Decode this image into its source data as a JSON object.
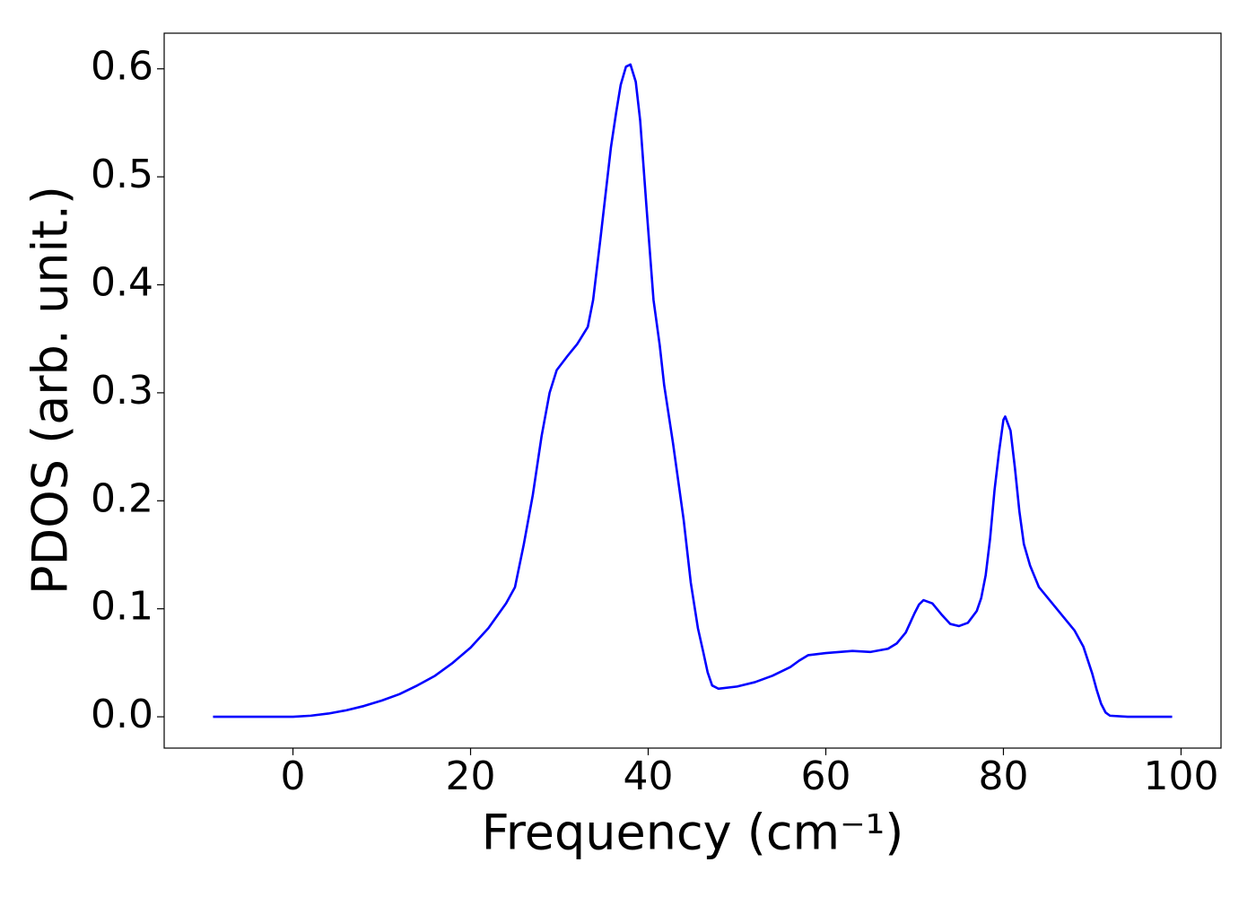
{
  "chart_data": {
    "type": "line",
    "xlabel": "Frequency (cm⁻¹)",
    "ylabel": "PDOS (arb. unit.)",
    "x": [
      -9,
      -7,
      -5,
      -3,
      -1,
      0,
      2,
      4,
      6,
      8,
      10,
      12,
      14,
      16,
      18,
      20,
      22,
      24,
      25,
      26,
      27,
      28,
      28.9,
      29.7,
      31,
      32,
      33.2,
      33.8,
      34.6,
      35.8,
      36.4,
      36.9,
      37.5,
      38,
      38.6,
      39.1,
      39.8,
      40.6,
      41.3,
      41.8,
      42.8,
      44,
      44.8,
      45.6,
      46.2,
      46.7,
      47.2,
      47.9,
      50,
      52,
      54,
      56,
      57,
      58,
      60,
      63,
      65,
      67,
      68,
      69,
      70,
      70.5,
      71,
      72,
      73,
      74,
      75,
      76,
      77,
      77.5,
      78,
      78.5,
      79,
      79.5,
      80,
      80.2,
      80.8,
      81.3,
      81.8,
      82.3,
      83,
      84,
      86,
      88,
      89,
      90,
      90.5,
      91,
      91.5,
      92,
      94,
      96,
      99
    ],
    "series": [
      {
        "color": "#0000ff",
        "values": [
          0,
          0,
          0,
          0,
          0,
          0,
          0.001,
          0.003,
          0.006,
          0.01,
          0.015,
          0.021,
          0.029,
          0.038,
          0.05,
          0.064,
          0.082,
          0.105,
          0.12,
          0.16,
          0.205,
          0.26,
          0.3,
          0.321,
          0.335,
          0.345,
          0.361,
          0.386,
          0.441,
          0.527,
          0.56,
          0.585,
          0.602,
          0.604,
          0.588,
          0.552,
          0.473,
          0.386,
          0.344,
          0.307,
          0.253,
          0.182,
          0.124,
          0.082,
          0.06,
          0.041,
          0.029,
          0.026,
          0.028,
          0.032,
          0.038,
          0.046,
          0.052,
          0.057,
          0.059,
          0.061,
          0.06,
          0.063,
          0.068,
          0.078,
          0.096,
          0.104,
          0.108,
          0.105,
          0.095,
          0.086,
          0.084,
          0.087,
          0.098,
          0.11,
          0.131,
          0.165,
          0.21,
          0.245,
          0.275,
          0.278,
          0.265,
          0.23,
          0.19,
          0.16,
          0.14,
          0.12,
          0.1,
          0.08,
          0.065,
          0.04,
          0.025,
          0.012,
          0.004,
          0.001,
          0,
          0,
          0
        ]
      }
    ],
    "xlim": [
      -14.5,
      104.5
    ],
    "ylim": [
      -0.029,
      0.633
    ],
    "xticks": [
      0,
      20,
      40,
      60,
      80,
      100
    ],
    "yticks": [
      {
        "value": 0,
        "label": "0.0"
      },
      0.1,
      0.2,
      0.3,
      0.4,
      0.5,
      0.6
    ]
  }
}
